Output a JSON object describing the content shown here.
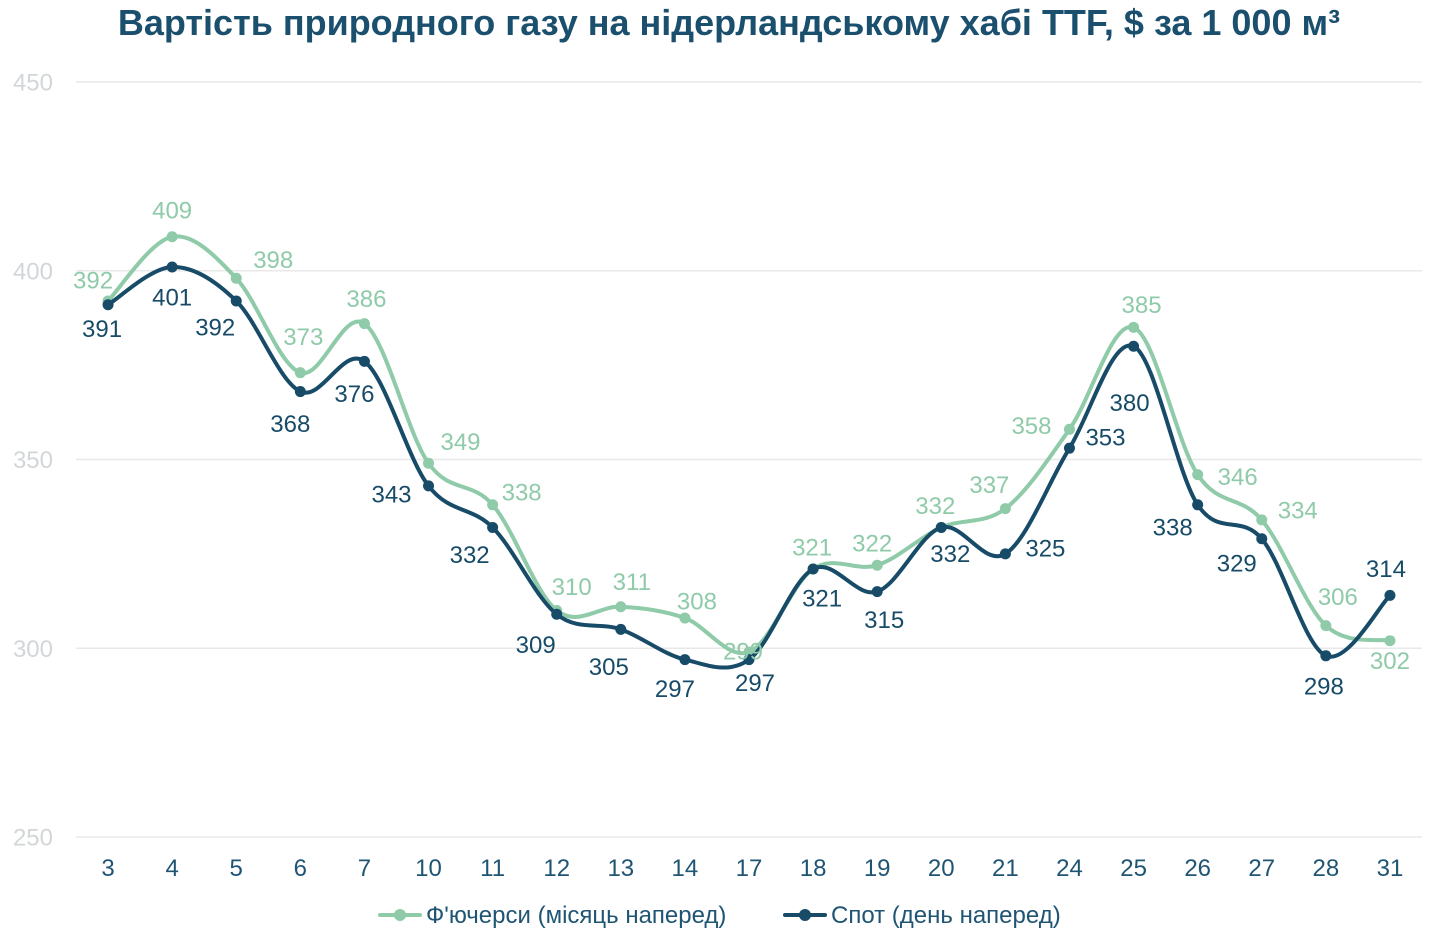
{
  "chart_data": {
    "type": "line",
    "title": "Вартість природного газу на нідерландському хабі TTF, $ за 1 000 м³",
    "categories": [
      "3",
      "4",
      "5",
      "6",
      "7",
      "10",
      "11",
      "12",
      "13",
      "14",
      "17",
      "18",
      "19",
      "20",
      "21",
      "24",
      "25",
      "26",
      "27",
      "28",
      "31"
    ],
    "series": [
      {
        "name": "Ф'ючерси (місяць наперед)",
        "color": "#8fcaa9",
        "values": [
          392,
          409,
          398,
          373,
          386,
          349,
          338,
          310,
          311,
          308,
          299,
          321,
          322,
          332,
          337,
          358,
          385,
          346,
          334,
          306,
          302
        ]
      },
      {
        "name": "Спот (день наперед)",
        "color": "#174b68",
        "values": [
          391,
          401,
          392,
          368,
          376,
          343,
          332,
          309,
          305,
          297,
          297,
          321,
          315,
          332,
          325,
          353,
          380,
          338,
          329,
          298,
          314
        ]
      }
    ],
    "ylim": [
      250,
      450
    ],
    "yticks": [
      250,
      300,
      350,
      400,
      450
    ],
    "grid": true,
    "legend": "bottom",
    "smooth": true,
    "markers": true,
    "data_labels": true
  },
  "colors": {
    "title": "#1b4f6e",
    "axis_text": "#1f5573",
    "y_tick_text": "#d3d6d8",
    "grid": "#e8e8e8"
  }
}
